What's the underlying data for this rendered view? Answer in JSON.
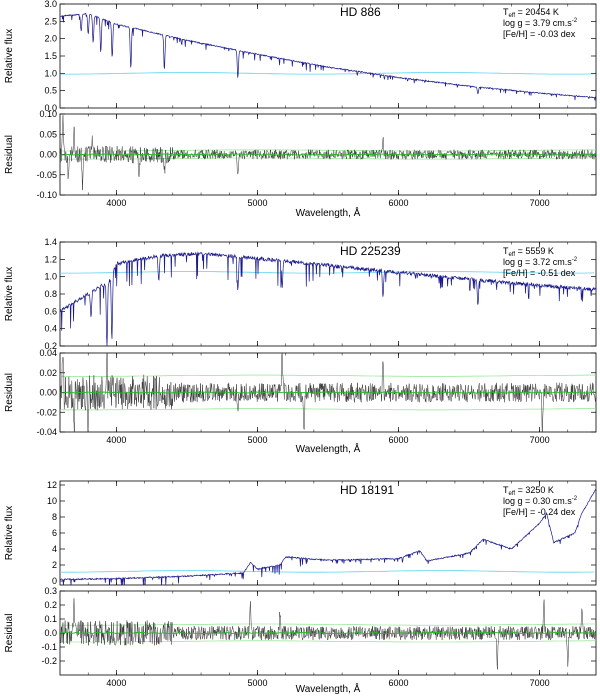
{
  "chart_data": [
    {
      "type": "line",
      "title": "HD 886",
      "xlabel": "Wavelength, Å",
      "xlim": [
        3600,
        7400
      ],
      "x_ticks": [
        4000,
        5000,
        6000,
        7000
      ],
      "flux": {
        "ylabel": "Relative flux",
        "ylim": [
          0.0,
          3.0
        ],
        "y_ticks": [
          "0.0",
          "0.5",
          "1.0",
          "1.5",
          "2.0",
          "2.5",
          "3.0"
        ],
        "continuum": [
          [
            3600,
            2.65
          ],
          [
            3800,
            2.72
          ],
          [
            4000,
            2.42
          ],
          [
            4500,
            1.95
          ],
          [
            5000,
            1.55
          ],
          [
            5500,
            1.18
          ],
          [
            6000,
            0.88
          ],
          [
            6500,
            0.63
          ],
          [
            7000,
            0.43
          ],
          [
            7400,
            0.3
          ]
        ],
        "absorption_lines": [
          [
            3750,
            0.5
          ],
          [
            3800,
            0.6
          ],
          [
            3835,
            0.8
          ],
          [
            3889,
            1.0
          ],
          [
            3970,
            1.0
          ],
          [
            4102,
            1.2
          ],
          [
            4340,
            1.0
          ],
          [
            4861,
            0.8
          ],
          [
            6563,
            0.2
          ]
        ],
        "noise": 0.03,
        "reference_level": 1.0
      },
      "residual": {
        "ylabel": "Residual",
        "ylim": [
          -0.1,
          0.1
        ],
        "y_ticks": [
          "-0.10",
          "-0.05",
          "0.00",
          "0.05",
          "0.10"
        ],
        "amplitude": 0.012,
        "spikes": [
          [
            3620,
            0.08
          ],
          [
            3660,
            -0.07
          ],
          [
            3700,
            0.06
          ],
          [
            3760,
            -0.09
          ],
          [
            3830,
            0.05
          ],
          [
            4160,
            -0.05
          ],
          [
            4340,
            -0.05
          ],
          [
            4860,
            -0.06
          ],
          [
            5890,
            0.04
          ]
        ],
        "band": [
          -0.01,
          0.01
        ]
      },
      "annotations": {
        "teff": "T",
        "teff_sub": "eff",
        "teff_value": " = 20454 K",
        "logg": "log g =  3.79 cm.s",
        "logg_sup": "-2",
        "feh": "[Fe/H] = -0.03 dex"
      }
    },
    {
      "type": "line",
      "title": "HD 225239",
      "xlabel": "Wavelength, Å",
      "xlim": [
        3600,
        7400
      ],
      "x_ticks": [
        4000,
        5000,
        6000,
        7000
      ],
      "flux": {
        "ylabel": "Relative flux",
        "ylim": [
          0.2,
          1.4
        ],
        "y_ticks": [
          "0.2",
          "0.4",
          "0.6",
          "0.8",
          "1.0",
          "1.2",
          "1.4"
        ],
        "continuum": [
          [
            3600,
            0.6
          ],
          [
            3800,
            0.8
          ],
          [
            3950,
            0.95
          ],
          [
            4000,
            1.15
          ],
          [
            4300,
            1.24
          ],
          [
            4600,
            1.27
          ],
          [
            5000,
            1.21
          ],
          [
            5500,
            1.13
          ],
          [
            6000,
            1.05
          ],
          [
            6500,
            0.97
          ],
          [
            7000,
            0.9
          ],
          [
            7400,
            0.85
          ]
        ],
        "absorption_lines": [
          [
            3820,
            0.3
          ],
          [
            3933,
            0.75
          ],
          [
            3968,
            0.75
          ],
          [
            4300,
            0.3
          ],
          [
            4861,
            0.4
          ],
          [
            5175,
            0.3
          ],
          [
            5890,
            0.3
          ],
          [
            6563,
            0.3
          ]
        ],
        "noise": 0.04,
        "reference_level": 1.05
      },
      "residual": {
        "ylabel": "Residual",
        "ylim": [
          -0.04,
          0.04
        ],
        "y_ticks": [
          "-0.04",
          "-0.02",
          "0.00",
          "0.02",
          "0.04"
        ],
        "amplitude": 0.01,
        "spikes": [
          [
            3620,
            0.04
          ],
          [
            3700,
            -0.04
          ],
          [
            3800,
            -0.035
          ],
          [
            3933,
            0.035
          ],
          [
            4860,
            -0.025
          ],
          [
            5175,
            0.04
          ],
          [
            5330,
            -0.04
          ],
          [
            5890,
            0.04
          ],
          [
            7020,
            -0.04
          ]
        ],
        "band": [
          -0.017,
          0.017
        ]
      },
      "annotations": {
        "teff": "T",
        "teff_sub": "eff",
        "teff_value": " = 5559 K",
        "logg": "log g =  3.72 cm.s",
        "logg_sup": "-2",
        "feh": "[Fe/H] = -0.51 dex"
      }
    },
    {
      "type": "line",
      "title": "HD 18191",
      "xlabel": "Wavelength, Å",
      "xlim": [
        3600,
        7400
      ],
      "x_ticks": [
        4000,
        5000,
        6000,
        7000
      ],
      "flux": {
        "ylabel": "Relative flux",
        "ylim": [
          -0.5,
          12.5
        ],
        "y_ticks": [
          "0",
          "2",
          "4",
          "6",
          "8",
          "10",
          "12"
        ],
        "continuum": [
          [
            3600,
            0.2
          ],
          [
            4000,
            0.3
          ],
          [
            4500,
            0.6
          ],
          [
            4900,
            1.0
          ],
          [
            4950,
            2.3
          ],
          [
            5000,
            1.5
          ],
          [
            5160,
            2.0
          ],
          [
            5200,
            3.0
          ],
          [
            5500,
            2.6
          ],
          [
            6000,
            2.8
          ],
          [
            6150,
            3.8
          ],
          [
            6200,
            2.5
          ],
          [
            6500,
            3.5
          ],
          [
            6600,
            5.2
          ],
          [
            6800,
            4.0
          ],
          [
            7000,
            7.2
          ],
          [
            7050,
            8.5
          ],
          [
            7100,
            4.8
          ],
          [
            7250,
            6.0
          ],
          [
            7300,
            8.5
          ],
          [
            7400,
            11.5
          ]
        ],
        "absorption_lines": [],
        "noise": 0.15,
        "reference_level": 1.2
      },
      "residual": {
        "ylabel": "Residual",
        "ylim": [
          -0.3,
          0.3
        ],
        "y_ticks": [
          "-0.2",
          "-0.1",
          "0.0",
          "0.1",
          "0.2",
          "0.3"
        ],
        "amplitude": 0.05,
        "spikes": [
          [
            3700,
            0.2
          ],
          [
            4950,
            0.2
          ],
          [
            5160,
            0.15
          ],
          [
            6700,
            -0.25
          ],
          [
            7030,
            0.25
          ],
          [
            7200,
            -0.25
          ],
          [
            7300,
            0.2
          ]
        ],
        "band": [
          -0.06,
          0.06
        ]
      },
      "annotations": {
        "teff": "T",
        "teff_sub": "eff",
        "teff_value": " = 3250 K",
        "logg": "log g =  0.30 cm.s",
        "logg_sup": "-2",
        "feh": "[Fe/H] = -0.24 dex"
      }
    }
  ]
}
